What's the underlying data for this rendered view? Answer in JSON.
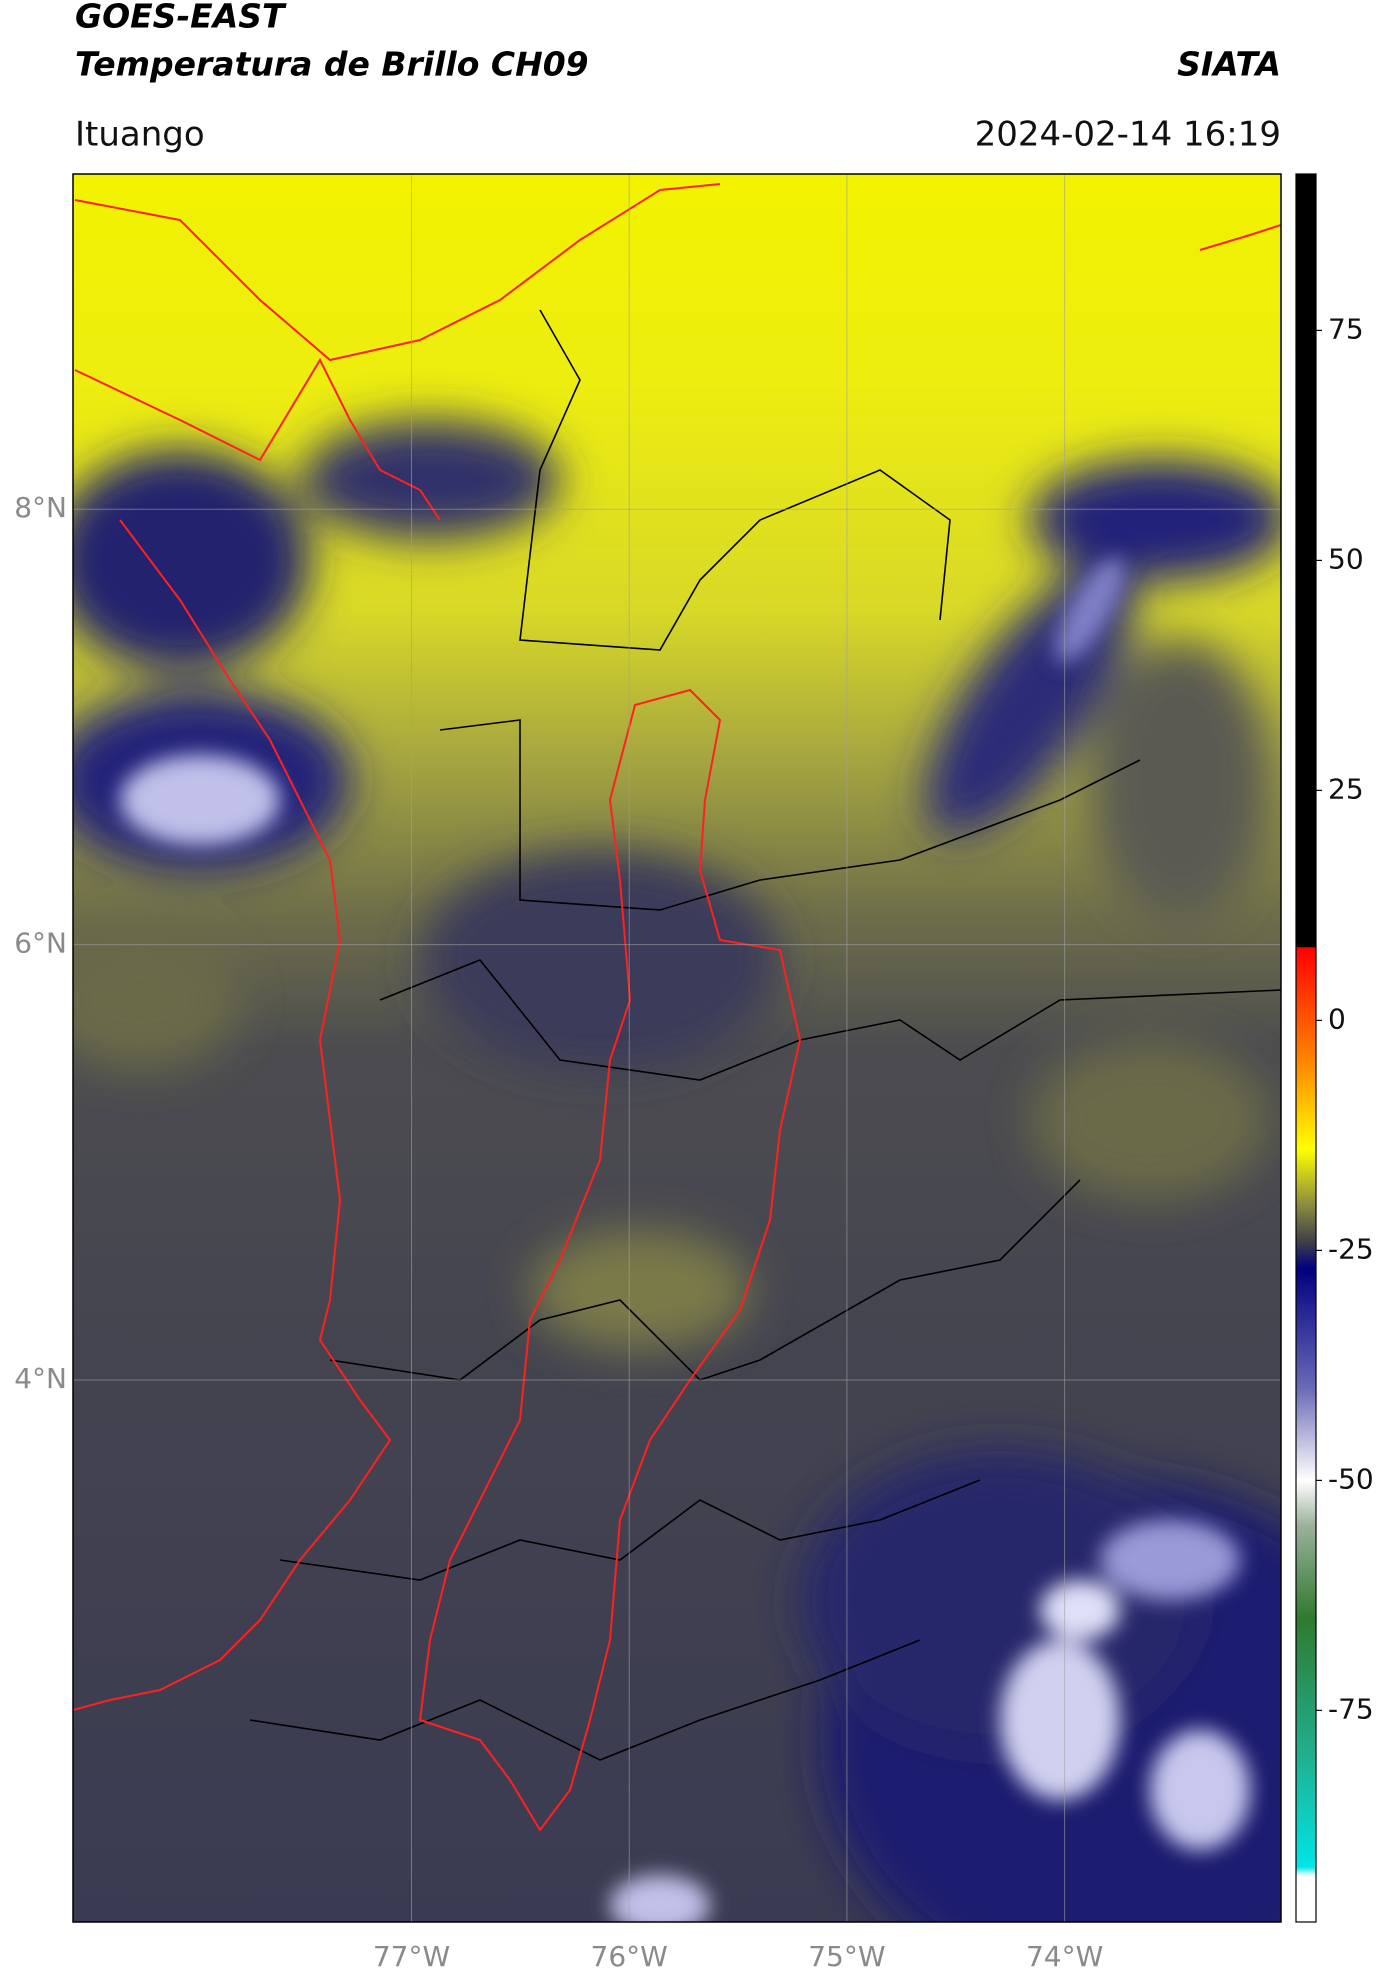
{
  "chart_data": {
    "type": "map",
    "title": "GOES-EAST",
    "subtitle": "Temperatura de Brillo CH09",
    "source": "SIATA",
    "location": "Ituango",
    "datetime": "2024-02-14 16:19",
    "xlim": [
      -78.555,
      -73.006
    ],
    "ylim": [
      1.51,
      9.54
    ],
    "xticks": [
      {
        "value": -77,
        "label": "77°W"
      },
      {
        "value": -76,
        "label": "76°W"
      },
      {
        "value": -75,
        "label": "75°W"
      },
      {
        "value": -74,
        "label": "74°W"
      }
    ],
    "yticks": [
      {
        "value": 8,
        "label": "8°N"
      },
      {
        "value": 6,
        "label": "6°N"
      },
      {
        "value": 4,
        "label": "4°N"
      }
    ],
    "grid": true,
    "colorbar": {
      "lim": [
        -98,
        92
      ],
      "ticks": [
        75,
        50,
        25,
        0,
        -25,
        -50,
        -75
      ],
      "stops": [
        {
          "value": 92,
          "color": "#000000"
        },
        {
          "value": 8,
          "color": "#000000"
        },
        {
          "value": 7.9,
          "color": "#ff0000"
        },
        {
          "value": -5,
          "color": "#ff8c00"
        },
        {
          "value": -14,
          "color": "#ffff00"
        },
        {
          "value": -20,
          "color": "#8c8c40"
        },
        {
          "value": -24,
          "color": "#404048"
        },
        {
          "value": -27,
          "color": "#000080"
        },
        {
          "value": -40,
          "color": "#6a6ab8"
        },
        {
          "value": -50,
          "color": "#ffffff"
        },
        {
          "value": -55,
          "color": "#9ab09a"
        },
        {
          "value": -65,
          "color": "#2f7a2f"
        },
        {
          "value": -80,
          "color": "#20b090"
        },
        {
          "value": -92,
          "color": "#00e5e5"
        },
        {
          "value": -93,
          "color": "#ffffff"
        },
        {
          "value": -98,
          "color": "#ffffff"
        }
      ]
    }
  }
}
